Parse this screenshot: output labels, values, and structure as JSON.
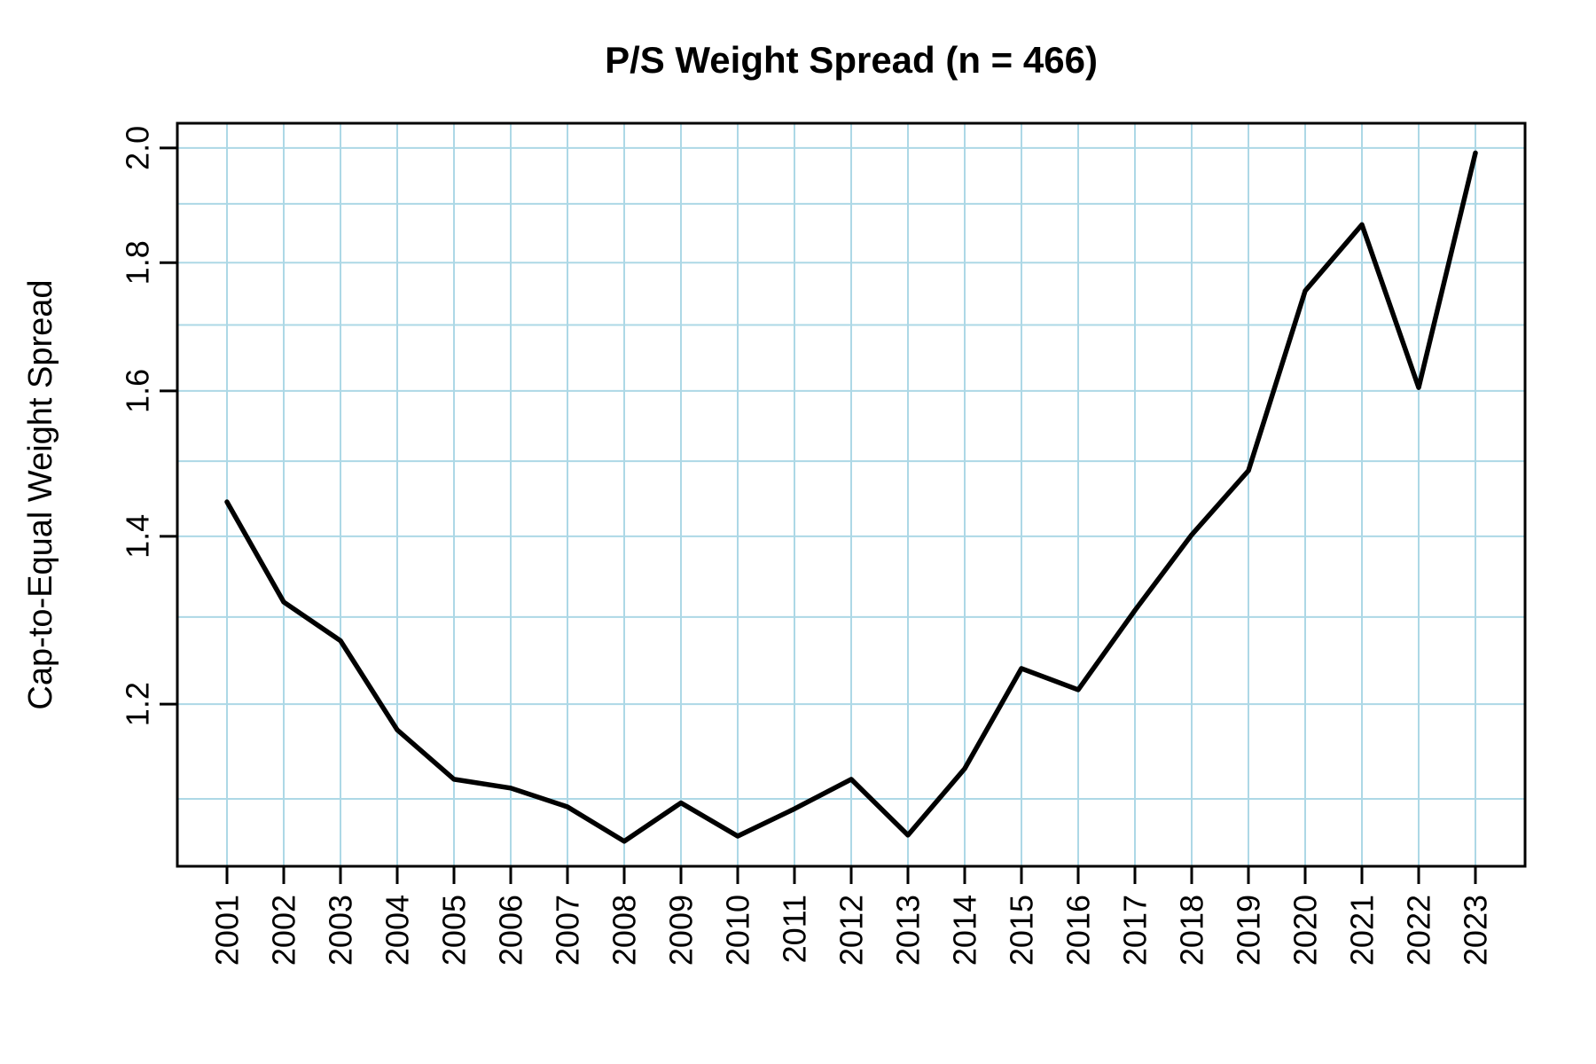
{
  "page": {
    "background": "#FFFFFF"
  },
  "chart_data": {
    "type": "line",
    "title": "P/S Weight Spread (n = 466)",
    "n": 466,
    "xlabel": "",
    "ylabel": "Cap-to-Equal Weight Spread",
    "x": [
      2001,
      2002,
      2003,
      2004,
      2005,
      2006,
      2007,
      2008,
      2009,
      2010,
      2011,
      2012,
      2013,
      2014,
      2015,
      2016,
      2017,
      2018,
      2019,
      2020,
      2021,
      2022,
      2023
    ],
    "series": [
      {
        "name": "Cap-to-Equal Weight Spread",
        "values": [
          1.445,
          1.318,
          1.272,
          1.172,
          1.12,
          1.111,
          1.092,
          1.058,
          1.096,
          1.063,
          1.09,
          1.12,
          1.064,
          1.131,
          1.24,
          1.216,
          1.308,
          1.402,
          1.487,
          1.754,
          1.864,
          1.605,
          1.991
        ]
      }
    ],
    "y_scale": "log",
    "xlim": [
      2000.125,
      2023.875
    ],
    "ylim": [
      1.034,
      2.046
    ],
    "x_ticks": [
      2001,
      2002,
      2003,
      2004,
      2005,
      2006,
      2007,
      2008,
      2009,
      2010,
      2011,
      2012,
      2013,
      2014,
      2015,
      2016,
      2017,
      2018,
      2019,
      2020,
      2021,
      2022,
      2023
    ],
    "x_tick_labels": [
      "2001",
      "2002",
      "2003",
      "2004",
      "2005",
      "2006",
      "2007",
      "2008",
      "2009",
      "2010",
      "2011",
      "2012",
      "2013",
      "2014",
      "2015",
      "2016",
      "2017",
      "2018",
      "2019",
      "2020",
      "2021",
      "2022",
      "2023"
    ],
    "y_ticks": [
      1.2,
      1.4,
      1.6,
      1.8,
      2.0
    ],
    "y_tick_labels": [
      "1.2",
      "1.4",
      "1.6",
      "1.8",
      "2.0"
    ],
    "y_gridlines": [
      1.1,
      1.2,
      1.3,
      1.4,
      1.5,
      1.6,
      1.7,
      1.8,
      1.9,
      2.0
    ],
    "grid": true,
    "legend": "none",
    "colors": {
      "line": "#000000",
      "grid": "#ADD8E6",
      "axis": "#000000",
      "text": "#000000",
      "background": "#FFFFFF"
    }
  }
}
